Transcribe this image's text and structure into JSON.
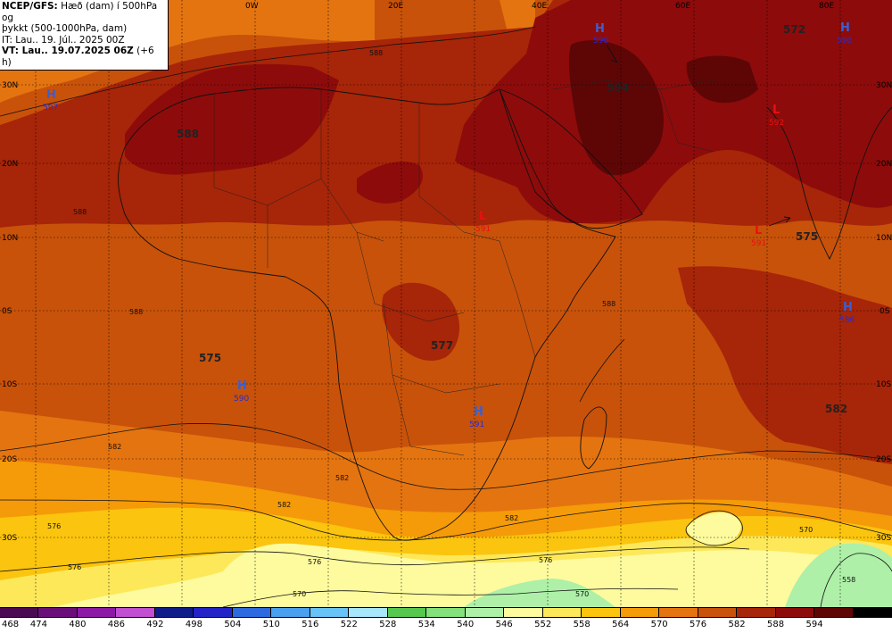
{
  "header": {
    "line1_bold": "NCEP/GFS:",
    "line1_rest": " Hæð (dam) í 500hPa og",
    "line2": "þykkt (500-1000hPa, dam)",
    "line3": "IT: Lau.. 19. Júl.. 2025 00Z",
    "line4_bold": "VT: Lau.. 19.07.2025 06Z",
    "line4_rest": " (+6 h)"
  },
  "map": {
    "lon_labels": [
      "0W",
      "20E",
      "40E",
      "60E",
      "80E"
    ],
    "lat_labels_left": [
      "30N",
      "20N",
      "10N",
      "0S",
      "10S",
      "20S",
      "30S"
    ],
    "lat_labels_right": [
      "30N",
      "20N",
      "10N",
      "0S",
      "10S",
      "20S",
      "30S"
    ],
    "thickness_values": [
      "588",
      "575",
      "577",
      "575",
      "582",
      "572",
      "594"
    ],
    "highs": [
      {
        "letter": "H",
        "value": "597"
      },
      {
        "letter": "H",
        "value": "590"
      },
      {
        "letter": "H",
        "value": "590"
      },
      {
        "letter": "H",
        "value": "591"
      },
      {
        "letter": "H",
        "value": "590"
      },
      {
        "letter": "H",
        "value": "586"
      }
    ],
    "lows": [
      {
        "letter": "L",
        "value": "591"
      },
      {
        "letter": "L",
        "value": "591"
      },
      {
        "letter": "L",
        "value": "592"
      }
    ],
    "contour_labels": [
      "588",
      "588",
      "588",
      "588",
      "582",
      "582",
      "582",
      "582",
      "576",
      "576",
      "576",
      "576",
      "570",
      "570",
      "570",
      "558"
    ],
    "colors": {
      "ocean_base": "#c8520a",
      "band_576": "#c8520a",
      "band_582": "#a72508",
      "band_588": "#8e0b0b",
      "band_594": "#5e0606",
      "band_570": "#e47410",
      "band_564": "#f59a08",
      "band_558": "#fbc40e",
      "band_552": "#fde85a",
      "band_546": "#fdfb9e",
      "band_540": "#aef0a8"
    }
  },
  "legend": {
    "labels": [
      "468",
      "474",
      "480",
      "486",
      "492",
      "498",
      "504",
      "510",
      "516",
      "522",
      "528",
      "534",
      "540",
      "546",
      "552",
      "558",
      "564",
      "570",
      "576",
      "582",
      "588",
      "594"
    ],
    "colors": [
      "#4a0a54",
      "#6a0f7a",
      "#8c19a6",
      "#c04fd2",
      "#101c8a",
      "#2323c8",
      "#2d6ae0",
      "#4aa0ee",
      "#68c4f6",
      "#a8e6fb",
      "#56c850",
      "#84e07a",
      "#aef0a8",
      "#fdfb9e",
      "#fde85a",
      "#fbc40e",
      "#f59a08",
      "#e47410",
      "#c8520a",
      "#a72508",
      "#8e0b0b",
      "#5e0606",
      "#000000"
    ]
  }
}
